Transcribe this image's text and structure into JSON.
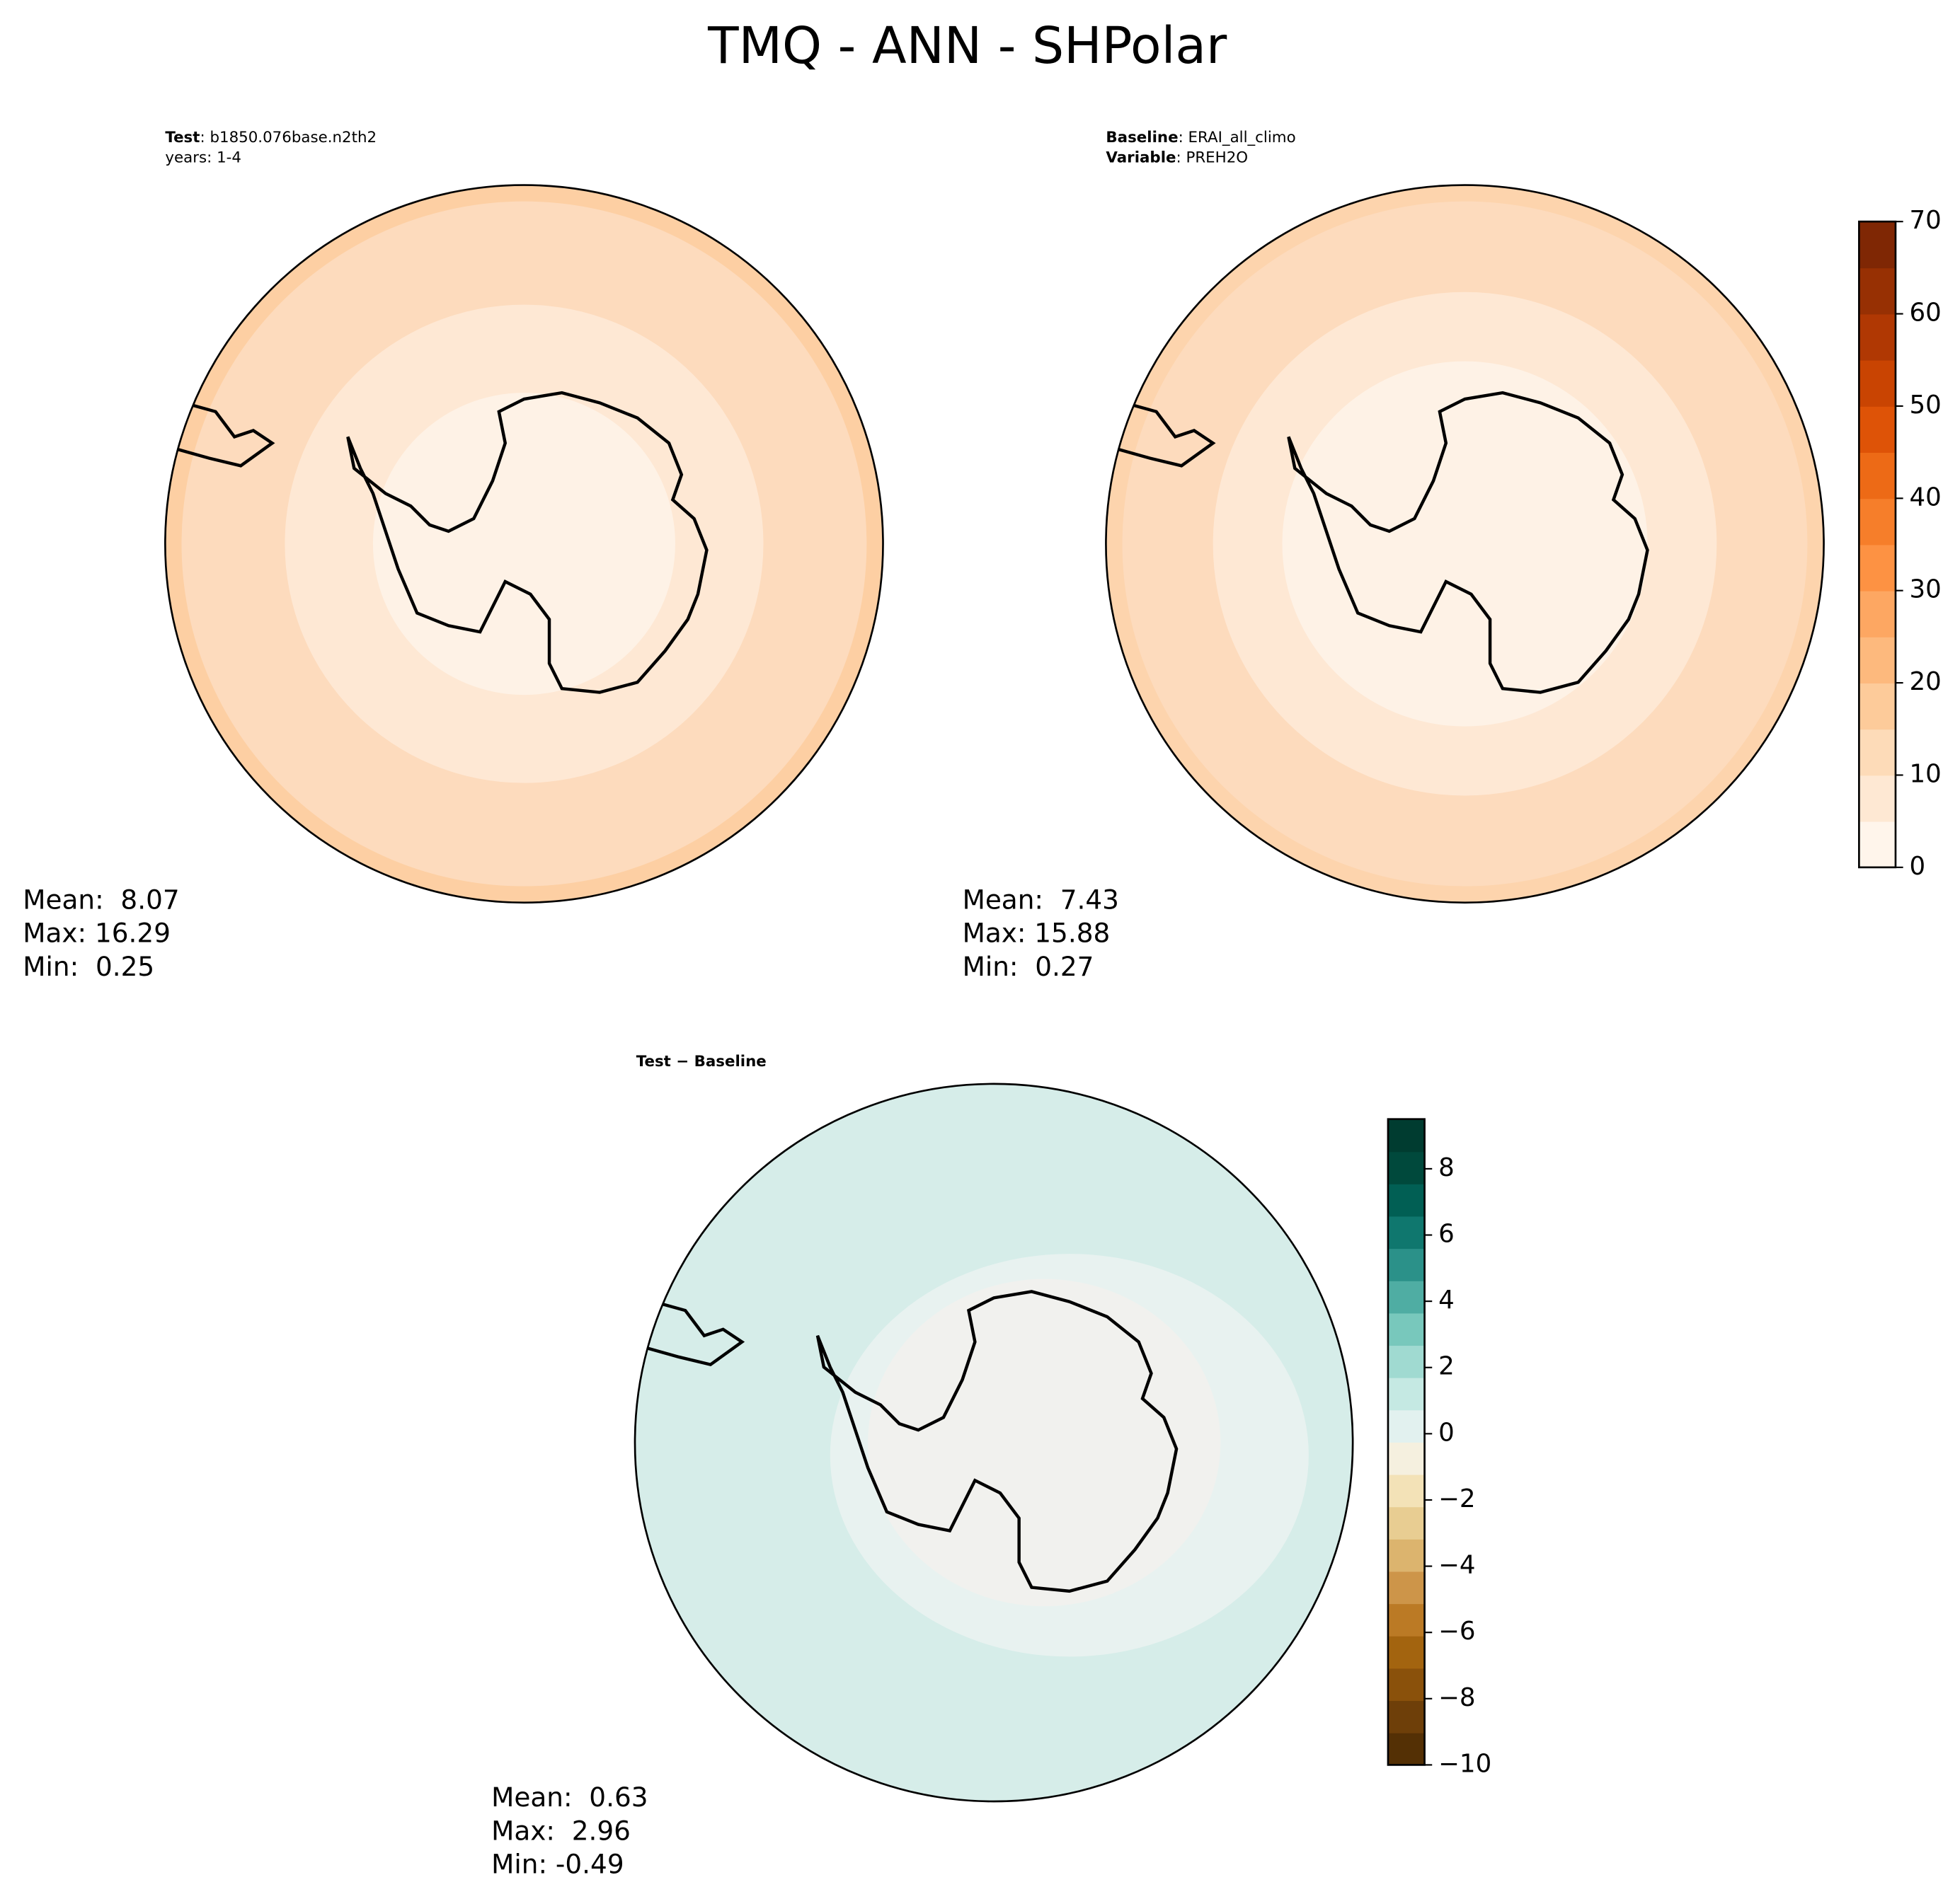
{
  "title": "TMQ - ANN - SHPolar",
  "panels": [
    {
      "labels": [
        {
          "key": "Test",
          "text": ": b1850.076base.n2th2"
        },
        {
          "text": "years: 1-4"
        }
      ],
      "stats": [
        "Mean:  8.07",
        "Max: 16.29",
        "Min:  0.25"
      ]
    },
    {
      "labels": [
        {
          "key": "Baseline",
          "text": ": ERAI_all_climo"
        },
        {
          "key": "Variable",
          "text": ": PREH2O"
        }
      ],
      "stats": [
        "Mean:  7.43",
        "Max: 15.88",
        "Min:  0.27"
      ]
    },
    {
      "labels": [
        {
          "key": "Test − Baseline"
        }
      ],
      "stats": [
        "Mean:  0.63",
        "Max:  2.96",
        "Min: -0.49"
      ]
    }
  ],
  "colorbars": [
    {
      "lim": [
        0,
        70
      ],
      "ticks": [
        0,
        10,
        20,
        30,
        40,
        50,
        60,
        70
      ],
      "colors": [
        "#fff5eb",
        "#fee8d3",
        "#fddbb8",
        "#fdcb9a",
        "#fdb97d",
        "#fda762",
        "#fd9243",
        "#f67e2a",
        "#ed6a16",
        "#de5307",
        "#c94402",
        "#b03803",
        "#973003",
        "#7f2704"
      ]
    },
    {
      "lim": [
        -10,
        9.5
      ],
      "ticks": [
        {
          "value": -10,
          "label": "−10"
        },
        {
          "value": -8,
          "label": "−8"
        },
        {
          "value": -6,
          "label": "−6"
        },
        {
          "value": -4,
          "label": "−4"
        },
        {
          "value": -2,
          "label": "−2"
        },
        0,
        2,
        4,
        6,
        8
      ],
      "colors": [
        "#543005",
        "#6e3f09",
        "#8a510b",
        "#a3640f",
        "#bb7a25",
        "#cd9549",
        "#dcb46e",
        "#e8cd92",
        "#f3e2b7",
        "#f5f0df",
        "#e2f1ef",
        "#c5e9e3",
        "#a0dad1",
        "#78c8bc",
        "#4fada3",
        "#2b9189",
        "#0f776e",
        "#015f54",
        "#00493c",
        "#003c30"
      ]
    }
  ]
}
